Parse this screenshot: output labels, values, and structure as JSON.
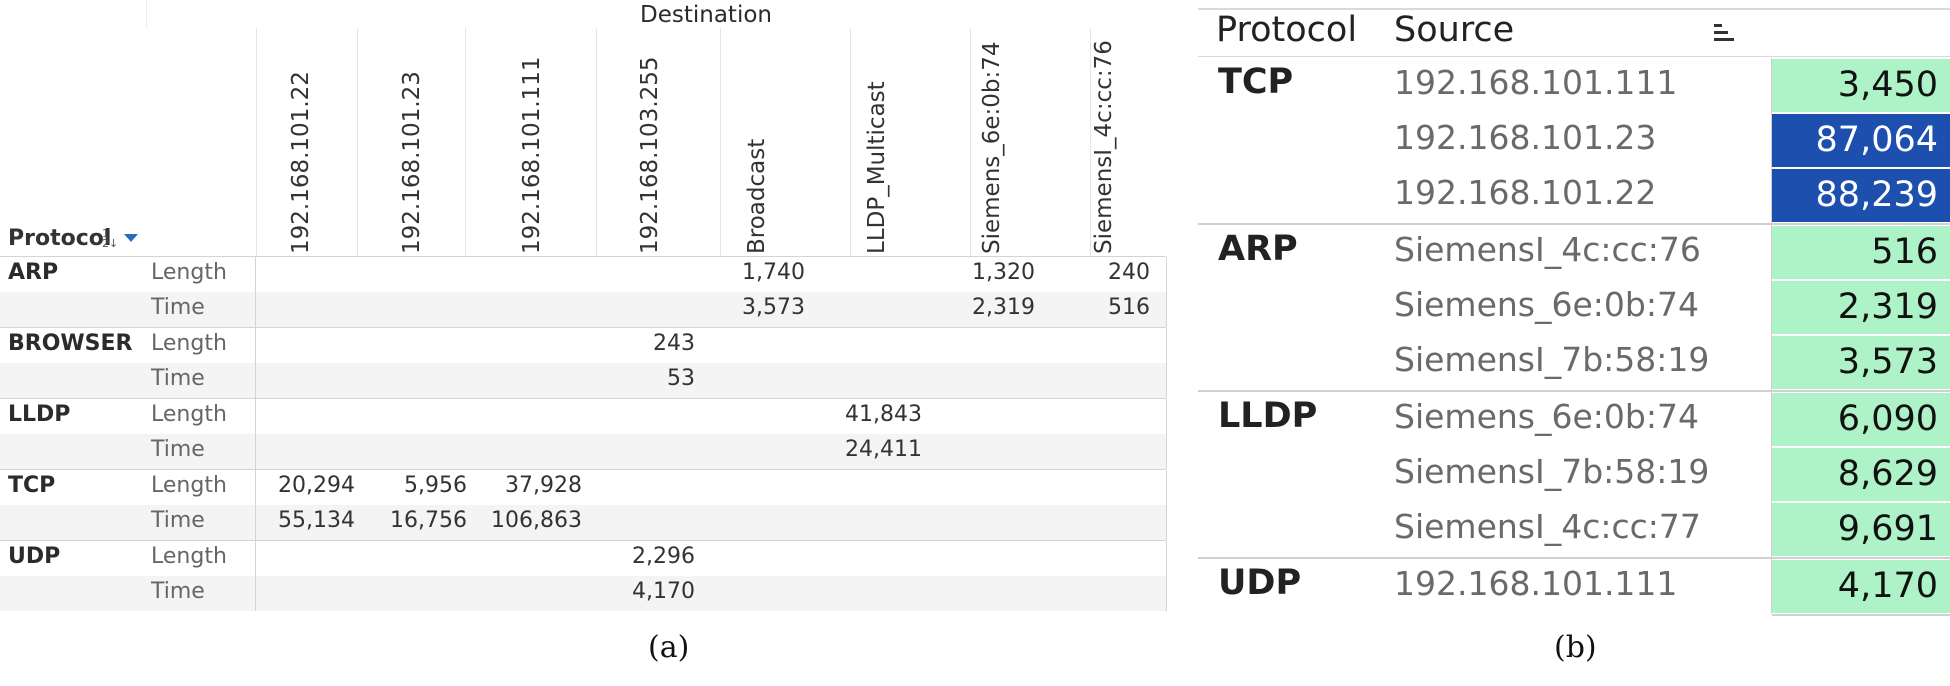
{
  "panel_a": {
    "column_group_header": "Destination",
    "row_header": "Protocol",
    "columns": [
      "192.168.101.22",
      "192.168.101.23",
      "192.168.101.111",
      "192.168.103.255",
      "Broadcast",
      "LLDP_Multicast",
      "Siemens_6e:0b:74",
      "SiemensI_4c:cc:76"
    ],
    "measures": [
      "Length",
      "Time"
    ],
    "rows": [
      {
        "protocol": "ARP",
        "length": [
          "",
          "",
          "",
          "",
          "1,740",
          "",
          "1,320",
          "240"
        ],
        "time": [
          "",
          "",
          "",
          "",
          "3,573",
          "",
          "2,319",
          "516"
        ]
      },
      {
        "protocol": "BROWSER",
        "length": [
          "",
          "",
          "",
          "243",
          "",
          "",
          "",
          ""
        ],
        "time": [
          "",
          "",
          "",
          "53",
          "",
          "",
          "",
          ""
        ]
      },
      {
        "protocol": "LLDP",
        "length": [
          "",
          "",
          "",
          "",
          "",
          "41,843",
          "",
          ""
        ],
        "time": [
          "",
          "",
          "",
          "",
          "",
          "24,411",
          "",
          ""
        ]
      },
      {
        "protocol": "TCP",
        "length": [
          "20,294",
          "5,956",
          "37,928",
          "",
          "",
          "",
          "",
          ""
        ],
        "time": [
          "55,134",
          "16,756",
          "106,863",
          "",
          "",
          "",
          "",
          ""
        ]
      },
      {
        "protocol": "UDP",
        "length": [
          "",
          "",
          "",
          "2,296",
          "",
          "",
          "",
          ""
        ],
        "time": [
          "",
          "",
          "",
          "4,170",
          "",
          "",
          "",
          ""
        ]
      }
    ],
    "caption": "(a)"
  },
  "panel_b": {
    "headers": {
      "protocol": "Protocol",
      "source": "Source"
    },
    "sort_icon": "sort-descending-icon",
    "colors": {
      "light_green": "#aef2c8",
      "dark_blue": "#1d4fae",
      "dark_text": "#ffffff"
    },
    "groups": [
      {
        "protocol": "TCP",
        "rows": [
          {
            "source": "192.168.101.111",
            "value": "3,450",
            "shade": "light"
          },
          {
            "source": "192.168.101.23",
            "value": "87,064",
            "shade": "dark"
          },
          {
            "source": "192.168.101.22",
            "value": "88,239",
            "shade": "dark"
          }
        ]
      },
      {
        "protocol": "ARP",
        "rows": [
          {
            "source": "SiemensI_4c:cc:76",
            "value": "516",
            "shade": "light"
          },
          {
            "source": "Siemens_6e:0b:74",
            "value": "2,319",
            "shade": "light"
          },
          {
            "source": "SiemensI_7b:58:19",
            "value": "3,573",
            "shade": "light"
          }
        ]
      },
      {
        "protocol": "LLDP",
        "rows": [
          {
            "source": "Siemens_6e:0b:74",
            "value": "6,090",
            "shade": "light"
          },
          {
            "source": "SiemensI_7b:58:19",
            "value": "8,629",
            "shade": "light"
          },
          {
            "source": "SiemensI_4c:cc:77",
            "value": "9,691",
            "shade": "light"
          }
        ]
      },
      {
        "protocol": "UDP",
        "rows": [
          {
            "source": "192.168.101.111",
            "value": "4,170",
            "shade": "light"
          }
        ]
      }
    ],
    "caption": "(b)"
  }
}
